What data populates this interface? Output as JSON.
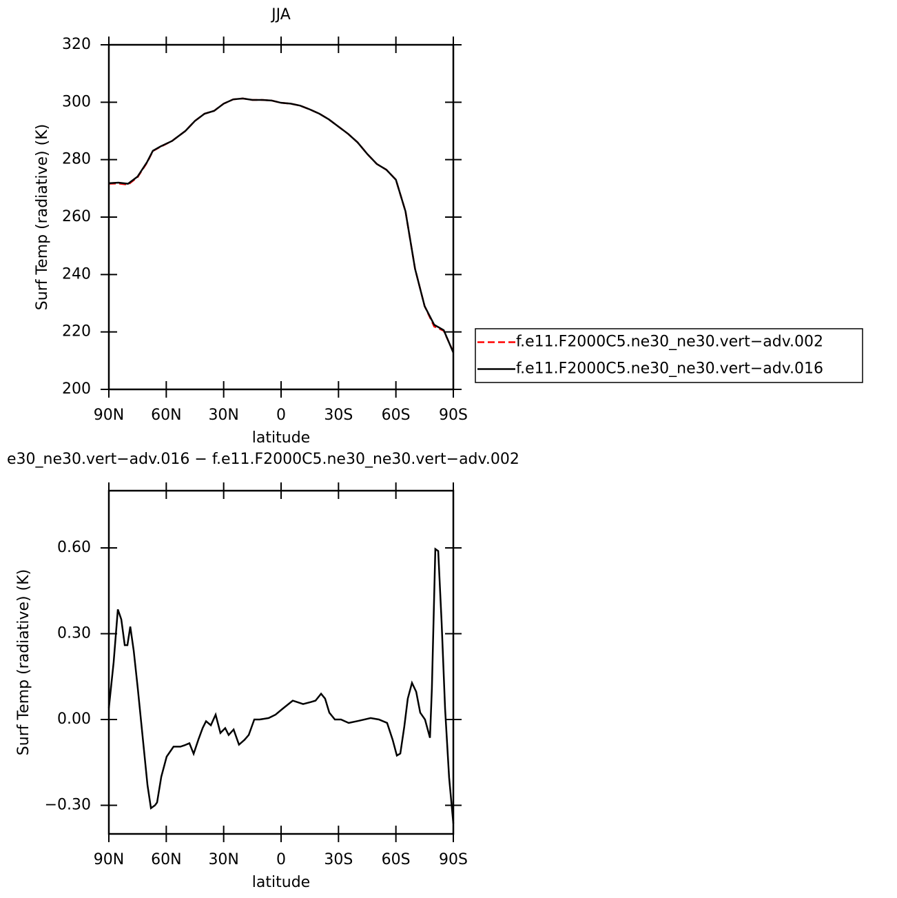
{
  "chart_data": [
    {
      "type": "line",
      "title": "JJA",
      "xlabel": "latitude",
      "ylabel": "Surf Temp (radiative) (K)",
      "xlim": [
        90,
        -90
      ],
      "ylim": [
        200,
        320
      ],
      "xticks": [
        {
          "value": 90,
          "label": "90N"
        },
        {
          "value": 60,
          "label": "60N"
        },
        {
          "value": 30,
          "label": "30N"
        },
        0,
        {
          "value": -30,
          "label": "30S"
        },
        {
          "value": -60,
          "label": "60S"
        },
        {
          "value": -90,
          "label": "90S"
        }
      ],
      "yticks": [
        200,
        220,
        240,
        260,
        280,
        300,
        320
      ],
      "legend": "outside-right",
      "x": [
        90,
        85,
        80,
        75,
        70,
        67,
        63,
        57,
        50,
        45,
        40,
        35,
        30,
        25,
        20,
        15,
        10,
        5,
        0,
        -5,
        -10,
        -15,
        -20,
        -25,
        -30,
        -35,
        -40,
        -45,
        -50,
        -55,
        -60,
        -65,
        -70,
        -75,
        -80,
        -85,
        -90
      ],
      "series": [
        {
          "name": "f.e11.F2000C5.ne30_ne30.vert−adv.002",
          "color": "#ff0000",
          "style": "dashed",
          "values": [
            271.6,
            271.7,
            271.3,
            273.9,
            279,
            283,
            284.5,
            286.5,
            290,
            293.5,
            296,
            297,
            299.5,
            301,
            301.3,
            300.8,
            300.8,
            300.6,
            299.8,
            299.5,
            298.8,
            297.5,
            296,
            294,
            291.5,
            289,
            286,
            282,
            278.5,
            276.5,
            273,
            262,
            242,
            229,
            221.9,
            220.4,
            213
          ]
        },
        {
          "name": "f.e11.F2000C5.ne30_ne30.vert−adv.016",
          "color": "#000000",
          "style": "solid",
          "values": [
            271.8,
            272,
            271.6,
            274.1,
            279.2,
            283.1,
            284.6,
            286.5,
            290,
            293.5,
            296,
            297,
            299.5,
            301,
            301.3,
            300.8,
            300.8,
            300.6,
            299.8,
            299.5,
            298.8,
            297.5,
            296,
            294,
            291.5,
            289,
            286,
            282,
            278.5,
            276.5,
            273,
            262,
            242,
            229,
            222.5,
            220.6,
            212.8
          ]
        }
      ]
    },
    {
      "type": "line",
      "title": "e30_ne30.vert−adv.016 − f.e11.F2000C5.ne30_ne30.vert−adv.002",
      "xlabel": "latitude",
      "ylabel": "Surf Temp (radiative) (K)",
      "xlim": [
        90,
        -90
      ],
      "ylim": [
        -0.4,
        0.8
      ],
      "xticks": [
        {
          "value": 90,
          "label": "90N"
        },
        {
          "value": 60,
          "label": "60N"
        },
        {
          "value": 30,
          "label": "30N"
        },
        0,
        {
          "value": -30,
          "label": "30S"
        },
        {
          "value": -60,
          "label": "60S"
        },
        {
          "value": -90,
          "label": "90S"
        }
      ],
      "yticks": [
        {
          "value": -0.3,
          "label": "−0.30"
        },
        {
          "value": 0,
          "label": "0.00"
        },
        {
          "value": 0.3,
          "label": "0.30"
        },
        {
          "value": 0.6,
          "label": "0.60"
        }
      ],
      "x": [
        90,
        87.5,
        85.3,
        83.5,
        81.7,
        80.3,
        78.8,
        77,
        74.9,
        73.1,
        71.3,
        69.8,
        68,
        65.9,
        64.8,
        62.6,
        59.8,
        56.2,
        52.6,
        50.4,
        47.9,
        45.7,
        43.2,
        41,
        39.2,
        36.7,
        34.2,
        31.7,
        29.2,
        27.4,
        24.8,
        22,
        19.1,
        16.9,
        14,
        11.2,
        6.5,
        2.9,
        -0.7,
        -6.1,
        -11.5,
        -15.5,
        -18,
        -20.9,
        -23,
        -25.2,
        -28.1,
        -31.3,
        -35.3,
        -40.3,
        -46.8,
        -51.1,
        -55.4,
        -58.3,
        -60.5,
        -62.3,
        -64.4,
        -66.2,
        -68.4,
        -70.6,
        -72.7,
        -75.2,
        -77.8,
        -78.8,
        -80.6,
        -82.1,
        -83.9,
        -85.7,
        -87.8,
        -90
      ],
      "series": [
        {
          "name": null,
          "color": "#000000",
          "style": "solid",
          "values": [
            0.04,
            0.2,
            0.385,
            0.35,
            0.26,
            0.26,
            0.325,
            0.24,
            0.11,
            -0.01,
            -0.13,
            -0.23,
            -0.31,
            -0.3,
            -0.29,
            -0.2,
            -0.13,
            -0.095,
            -0.095,
            -0.09,
            -0.083,
            -0.12,
            -0.07,
            -0.03,
            -0.006,
            -0.02,
            0.017,
            -0.047,
            -0.03,
            -0.054,
            -0.035,
            -0.088,
            -0.071,
            -0.054,
            0,
            0,
            0.005,
            0.017,
            0.037,
            0.066,
            0.054,
            0.061,
            0.066,
            0.09,
            0.073,
            0.024,
            0,
            0,
            -0.012,
            -0.005,
            0.005,
            0,
            -0.012,
            -0.071,
            -0.126,
            -0.119,
            -0.024,
            0.073,
            0.128,
            0.097,
            0.024,
            0,
            -0.064,
            0.109,
            0.596,
            0.589,
            0.337,
            0.037,
            -0.203,
            -0.364
          ]
        }
      ]
    }
  ]
}
